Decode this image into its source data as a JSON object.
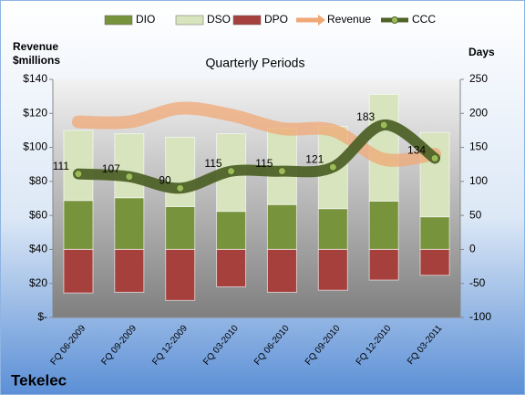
{
  "chart_data": {
    "type": "combo",
    "title": "Quarterly Periods",
    "company": "Tekelec",
    "y_label": "Revenue $millions",
    "y2_label": "Days",
    "categories": [
      "FQ 06-2009",
      "FQ 09-2009",
      "FQ 12-2009",
      "FQ 03-2010",
      "FQ 06-2010",
      "FQ 09-2010",
      "FQ 12-2010",
      "FQ 03-2011"
    ],
    "ylim": [
      0,
      140
    ],
    "yticks": [
      {
        "value": 0,
        "label": "$-"
      },
      {
        "value": 20,
        "label": "$20"
      },
      {
        "value": 40,
        "label": "$40"
      },
      {
        "value": 60,
        "label": "$60"
      },
      {
        "value": 80,
        "label": "$80"
      },
      {
        "value": 100,
        "label": "$100"
      },
      {
        "value": 120,
        "label": "$120"
      },
      {
        "value": 140,
        "label": "$140"
      }
    ],
    "y2lim": [
      -100,
      250
    ],
    "y2ticks": [
      -100,
      -50,
      0,
      50,
      100,
      150,
      200,
      250
    ],
    "series": [
      {
        "name": "DIO",
        "type": "bar",
        "axis": "y2",
        "color": "#77933c",
        "values": [
          72,
          76,
          63,
          56,
          66,
          60,
          71,
          48
        ]
      },
      {
        "name": "DSO",
        "type": "bar",
        "axis": "y2",
        "color": "#d7e4bd",
        "values": [
          103,
          94,
          102,
          114,
          112,
          121,
          157,
          124
        ]
      },
      {
        "name": "DPO",
        "type": "bar",
        "axis": "y2",
        "color": "#a5403d",
        "values": [
          -64,
          -63,
          -75,
          -55,
          -63,
          -60,
          -45,
          -38
        ]
      },
      {
        "name": "Revenue",
        "type": "line",
        "color": "#f0a875",
        "values": [
          115,
          115,
          123,
          119,
          111,
          110,
          93,
          96
        ]
      },
      {
        "name": "CCC",
        "type": "line",
        "axis": "y2",
        "color": "#4f6228",
        "values": [
          111,
          107,
          90,
          115,
          115,
          121,
          183,
          134
        ]
      }
    ]
  }
}
